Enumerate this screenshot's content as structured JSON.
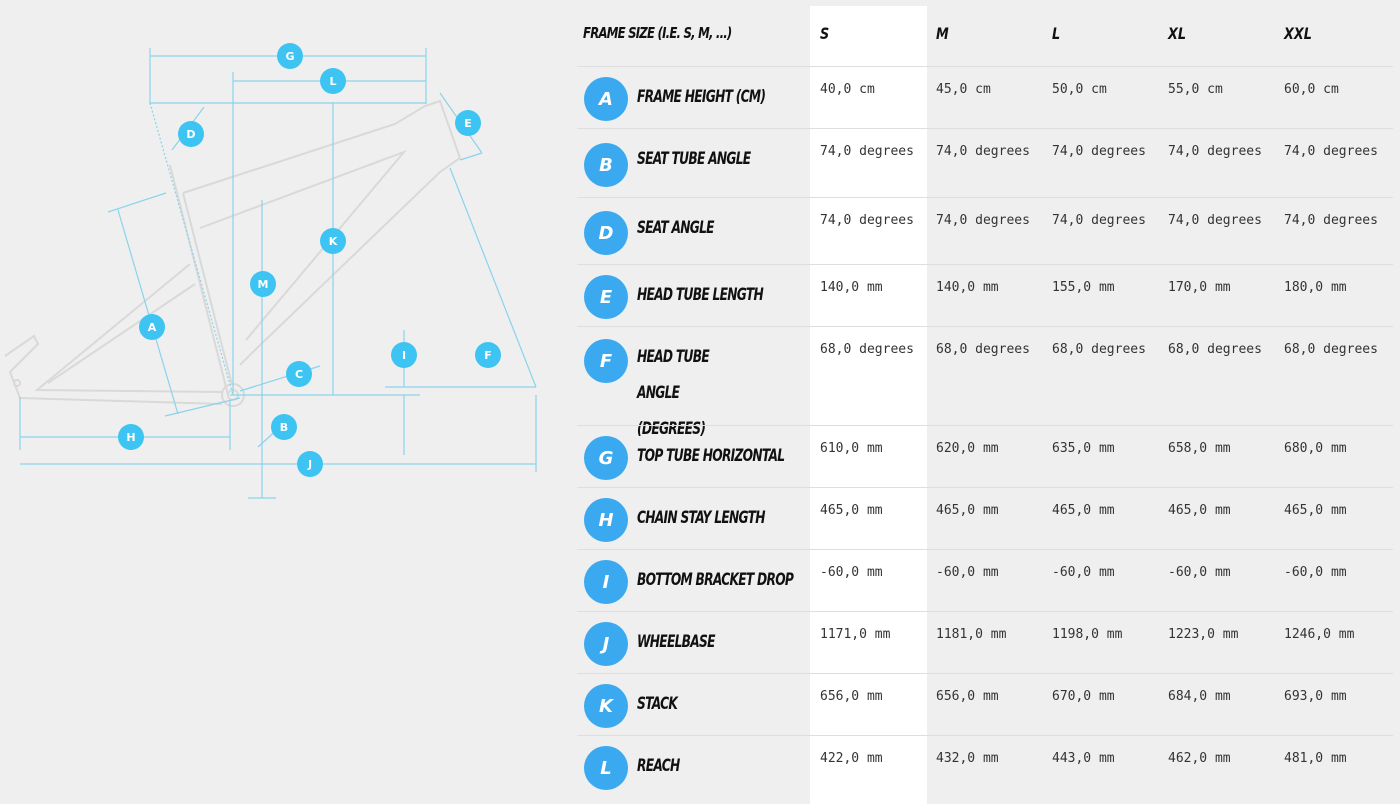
{
  "diagram": {
    "line_color": "#7fd3ee",
    "frame_color": "#d9d9d9",
    "badge_color": "#3ec4f2",
    "markers": [
      "G",
      "L",
      "D",
      "E",
      "K",
      "M",
      "A",
      "C",
      "I",
      "F",
      "B",
      "H",
      "J"
    ]
  },
  "table": {
    "header_label": "FRAME SIZE (I.E. S, M, ...)",
    "sizes": [
      "S",
      "M",
      "L",
      "XL",
      "XXL"
    ],
    "badge_color": "#3aa9f0",
    "rows": [
      {
        "letter": "A",
        "label": "FRAME HEIGHT (CM)",
        "values": [
          "40,0 cm",
          "45,0 cm",
          "50,0 cm",
          "55,0 cm",
          "60,0 cm"
        ]
      },
      {
        "letter": "B",
        "label": "SEAT TUBE ANGLE",
        "values": [
          "74,0 degrees",
          "74,0 degrees",
          "74,0 degrees",
          "74,0 degrees",
          "74,0 degrees"
        ]
      },
      {
        "letter": "D",
        "label": "SEAT ANGLE",
        "values": [
          "74,0 degrees",
          "74,0 degrees",
          "74,0 degrees",
          "74,0 degrees",
          "74,0 degrees"
        ]
      },
      {
        "letter": "E",
        "label": "HEAD TUBE LENGTH",
        "values": [
          "140,0 mm",
          "140,0 mm",
          "155,0 mm",
          "170,0 mm",
          "180,0 mm"
        ]
      },
      {
        "letter": "F",
        "label": "HEAD TUBE ANGLE (DEGREES)",
        "values": [
          "68,0 degrees",
          "68,0 degrees",
          "68,0 degrees",
          "68,0 degrees",
          "68,0 degrees"
        ]
      },
      {
        "letter": "G",
        "label": "TOP TUBE HORIZONTAL",
        "values": [
          "610,0 mm",
          "620,0 mm",
          "635,0 mm",
          "658,0 mm",
          "680,0 mm"
        ]
      },
      {
        "letter": "H",
        "label": "CHAIN STAY LENGTH",
        "values": [
          "465,0 mm",
          "465,0 mm",
          "465,0 mm",
          "465,0 mm",
          "465,0 mm"
        ]
      },
      {
        "letter": "I",
        "label": "BOTTOM BRACKET DROP",
        "values": [
          "-60,0 mm",
          "-60,0 mm",
          "-60,0 mm",
          "-60,0 mm",
          "-60,0 mm"
        ]
      },
      {
        "letter": "J",
        "label": "WHEELBASE",
        "values": [
          "1171,0 mm",
          "1181,0 mm",
          "1198,0 mm",
          "1223,0 mm",
          "1246,0 mm"
        ]
      },
      {
        "letter": "K",
        "label": "STACK",
        "values": [
          "656,0 mm",
          "656,0 mm",
          "670,0 mm",
          "684,0 mm",
          "693,0 mm"
        ]
      },
      {
        "letter": "L",
        "label": "REACH",
        "values": [
          "422,0 mm",
          "432,0 mm",
          "443,0 mm",
          "462,0 mm",
          "481,0 mm"
        ]
      }
    ]
  }
}
